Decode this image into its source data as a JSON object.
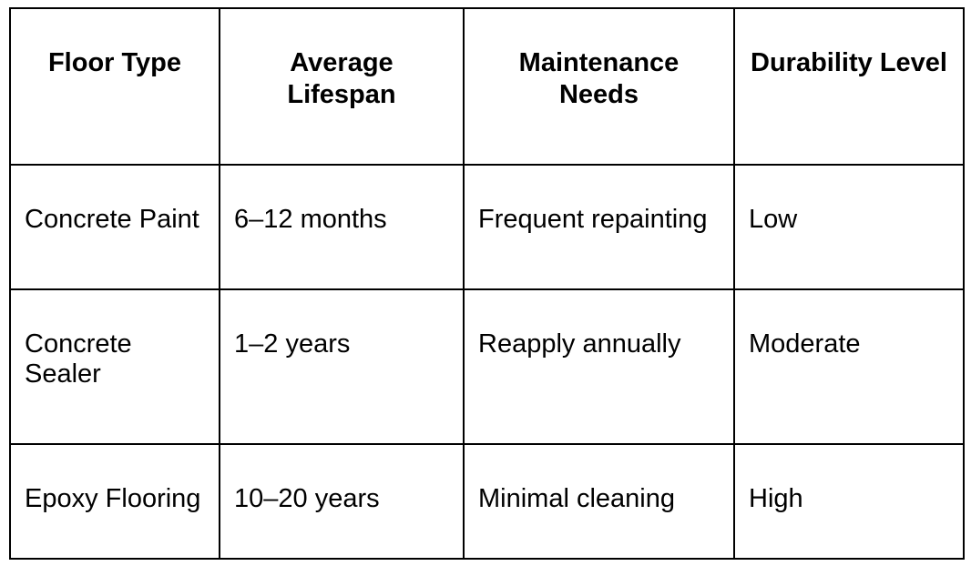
{
  "chart_data": {
    "type": "table",
    "title": "",
    "columns": [
      "Floor Type",
      "Average Lifespan",
      "Maintenance Needs",
      "Durability Level"
    ],
    "rows": [
      [
        "Concrete Paint",
        "6–12 months",
        "Frequent repainting",
        "Low"
      ],
      [
        "Concrete Sealer",
        "1–2 years",
        "Reapply annually",
        "Moderate"
      ],
      [
        "Epoxy Flooring",
        "10–20 years",
        "Minimal cleaning",
        "High"
      ]
    ],
    "layout": {
      "grid": "all-borders",
      "header_style": "bold-centered",
      "body_style": "left-aligned"
    }
  },
  "table": {
    "headers": [
      {
        "label": "Floor Type"
      },
      {
        "label": "Average\nLifespan"
      },
      {
        "label": "Maintenance\nNeeds"
      },
      {
        "label": "Durability Level"
      }
    ],
    "rows": [
      {
        "cells": [
          "Concrete Paint",
          "6–12 months",
          "Frequent repainting",
          "Low"
        ]
      },
      {
        "cells": [
          "Concrete\nSealer",
          "1–2 years",
          "Reapply annually",
          "Moderate"
        ]
      },
      {
        "cells": [
          "Epoxy Flooring",
          "10–20 years",
          "Minimal cleaning",
          "High"
        ]
      }
    ],
    "colors": {
      "border": "#000000",
      "text": "#000000",
      "background": "#ffffff"
    }
  }
}
